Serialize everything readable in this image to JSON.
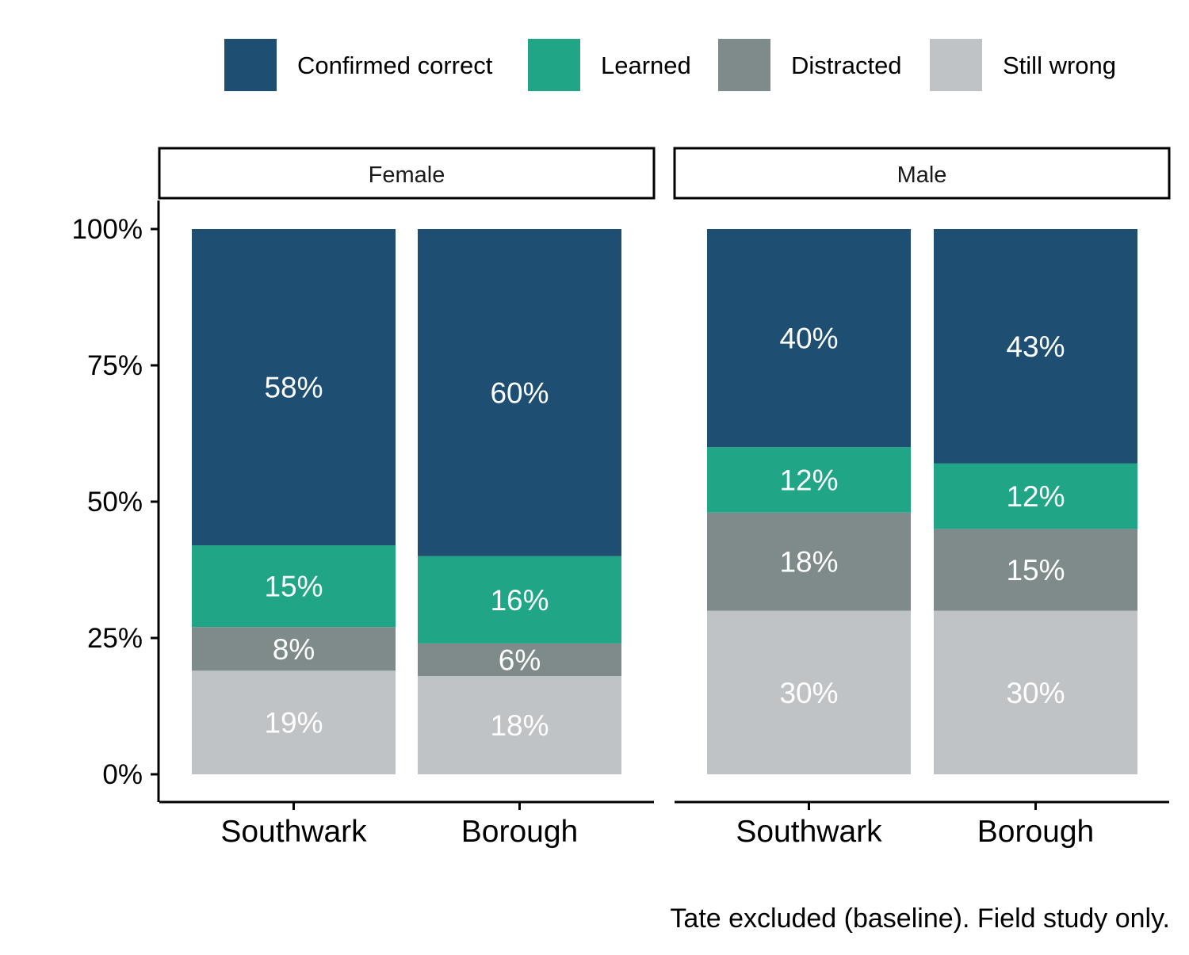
{
  "chart_data": {
    "type": "bar",
    "stacked": true,
    "y_axis": {
      "ylim": [
        0,
        100
      ],
      "ticks": [
        0,
        25,
        50,
        75,
        100
      ],
      "tick_labels": [
        "0%",
        "25%",
        "50%",
        "75%",
        "100%"
      ]
    },
    "legend": {
      "placement": "top",
      "entries": [
        {
          "name": "Confirmed correct",
          "color": "#1E4F73"
        },
        {
          "name": "Learned",
          "color": "#20A586"
        },
        {
          "name": "Distracted",
          "color": "#7F8B8B"
        },
        {
          "name": "Still wrong",
          "color": "#BFC3C6"
        }
      ]
    },
    "panels": [
      {
        "title": "Female",
        "categories": [
          "Southwark",
          "Borough"
        ],
        "series": [
          {
            "name": "Still wrong",
            "values": [
              19,
              18
            ],
            "labels": [
              "19%",
              "18%"
            ]
          },
          {
            "name": "Distracted",
            "values": [
              8,
              6
            ],
            "labels": [
              "8%",
              "6%"
            ]
          },
          {
            "name": "Learned",
            "values": [
              15,
              16
            ],
            "labels": [
              "15%",
              "16%"
            ]
          },
          {
            "name": "Confirmed correct",
            "values": [
              58,
              60
            ],
            "labels": [
              "58%",
              "60%"
            ]
          }
        ]
      },
      {
        "title": "Male",
        "categories": [
          "Southwark",
          "Borough"
        ],
        "series": [
          {
            "name": "Still wrong",
            "values": [
              30,
              30
            ],
            "labels": [
              "30%",
              "30%"
            ]
          },
          {
            "name": "Distracted",
            "values": [
              18,
              15
            ],
            "labels": [
              "18%",
              "15%"
            ]
          },
          {
            "name": "Learned",
            "values": [
              12,
              12
            ],
            "labels": [
              "12%",
              "12%"
            ]
          },
          {
            "name": "Confirmed correct",
            "values": [
              40,
              43
            ],
            "labels": [
              "40%",
              "43%"
            ]
          }
        ]
      }
    ],
    "caption": "Tate excluded (baseline). Field study only."
  }
}
